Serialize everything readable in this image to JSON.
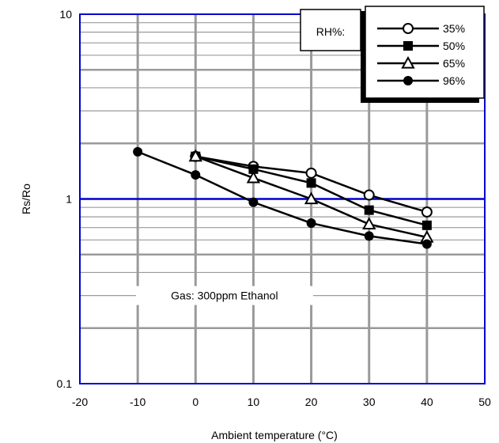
{
  "chart_data": {
    "type": "line",
    "xlabel": "Ambient temperature (°C)",
    "ylabel": "Rs/Ro",
    "xlim": [
      -20,
      50
    ],
    "ylim": [
      0.1,
      10
    ],
    "yscale": "log",
    "x_ticks": [
      "-20",
      "-10",
      "0",
      "10",
      "20",
      "30",
      "40",
      "50"
    ],
    "y_ticks": [
      "0.1",
      "1",
      "10"
    ],
    "grid": true,
    "annotation": "Gas: 300ppm Ethanol",
    "legend_title": "RH%:",
    "legend_position": "top-right",
    "series": [
      {
        "name": "35%",
        "marker": "open-circle",
        "x": [
          0,
          10,
          20,
          30,
          40
        ],
        "y": [
          1.7,
          1.5,
          1.38,
          1.05,
          0.85
        ]
      },
      {
        "name": "50%",
        "marker": "filled-square",
        "x": [
          0,
          10,
          20,
          30,
          40
        ],
        "y": [
          1.7,
          1.45,
          1.22,
          0.87,
          0.72
        ]
      },
      {
        "name": "65%",
        "marker": "open-triangle",
        "x": [
          0,
          10,
          20,
          30,
          40
        ],
        "y": [
          1.7,
          1.3,
          1.0,
          0.73,
          0.62
        ]
      },
      {
        "name": "96%",
        "marker": "filled-circle",
        "x": [
          -10,
          0,
          10,
          20,
          30,
          40
        ],
        "y": [
          1.8,
          1.35,
          0.96,
          0.74,
          0.63,
          0.57
        ]
      }
    ],
    "colors": {
      "axis": "#0000cc",
      "grid_major": "#0000cc",
      "grid_minor": "#9a9a9a",
      "series": "#000000"
    }
  }
}
